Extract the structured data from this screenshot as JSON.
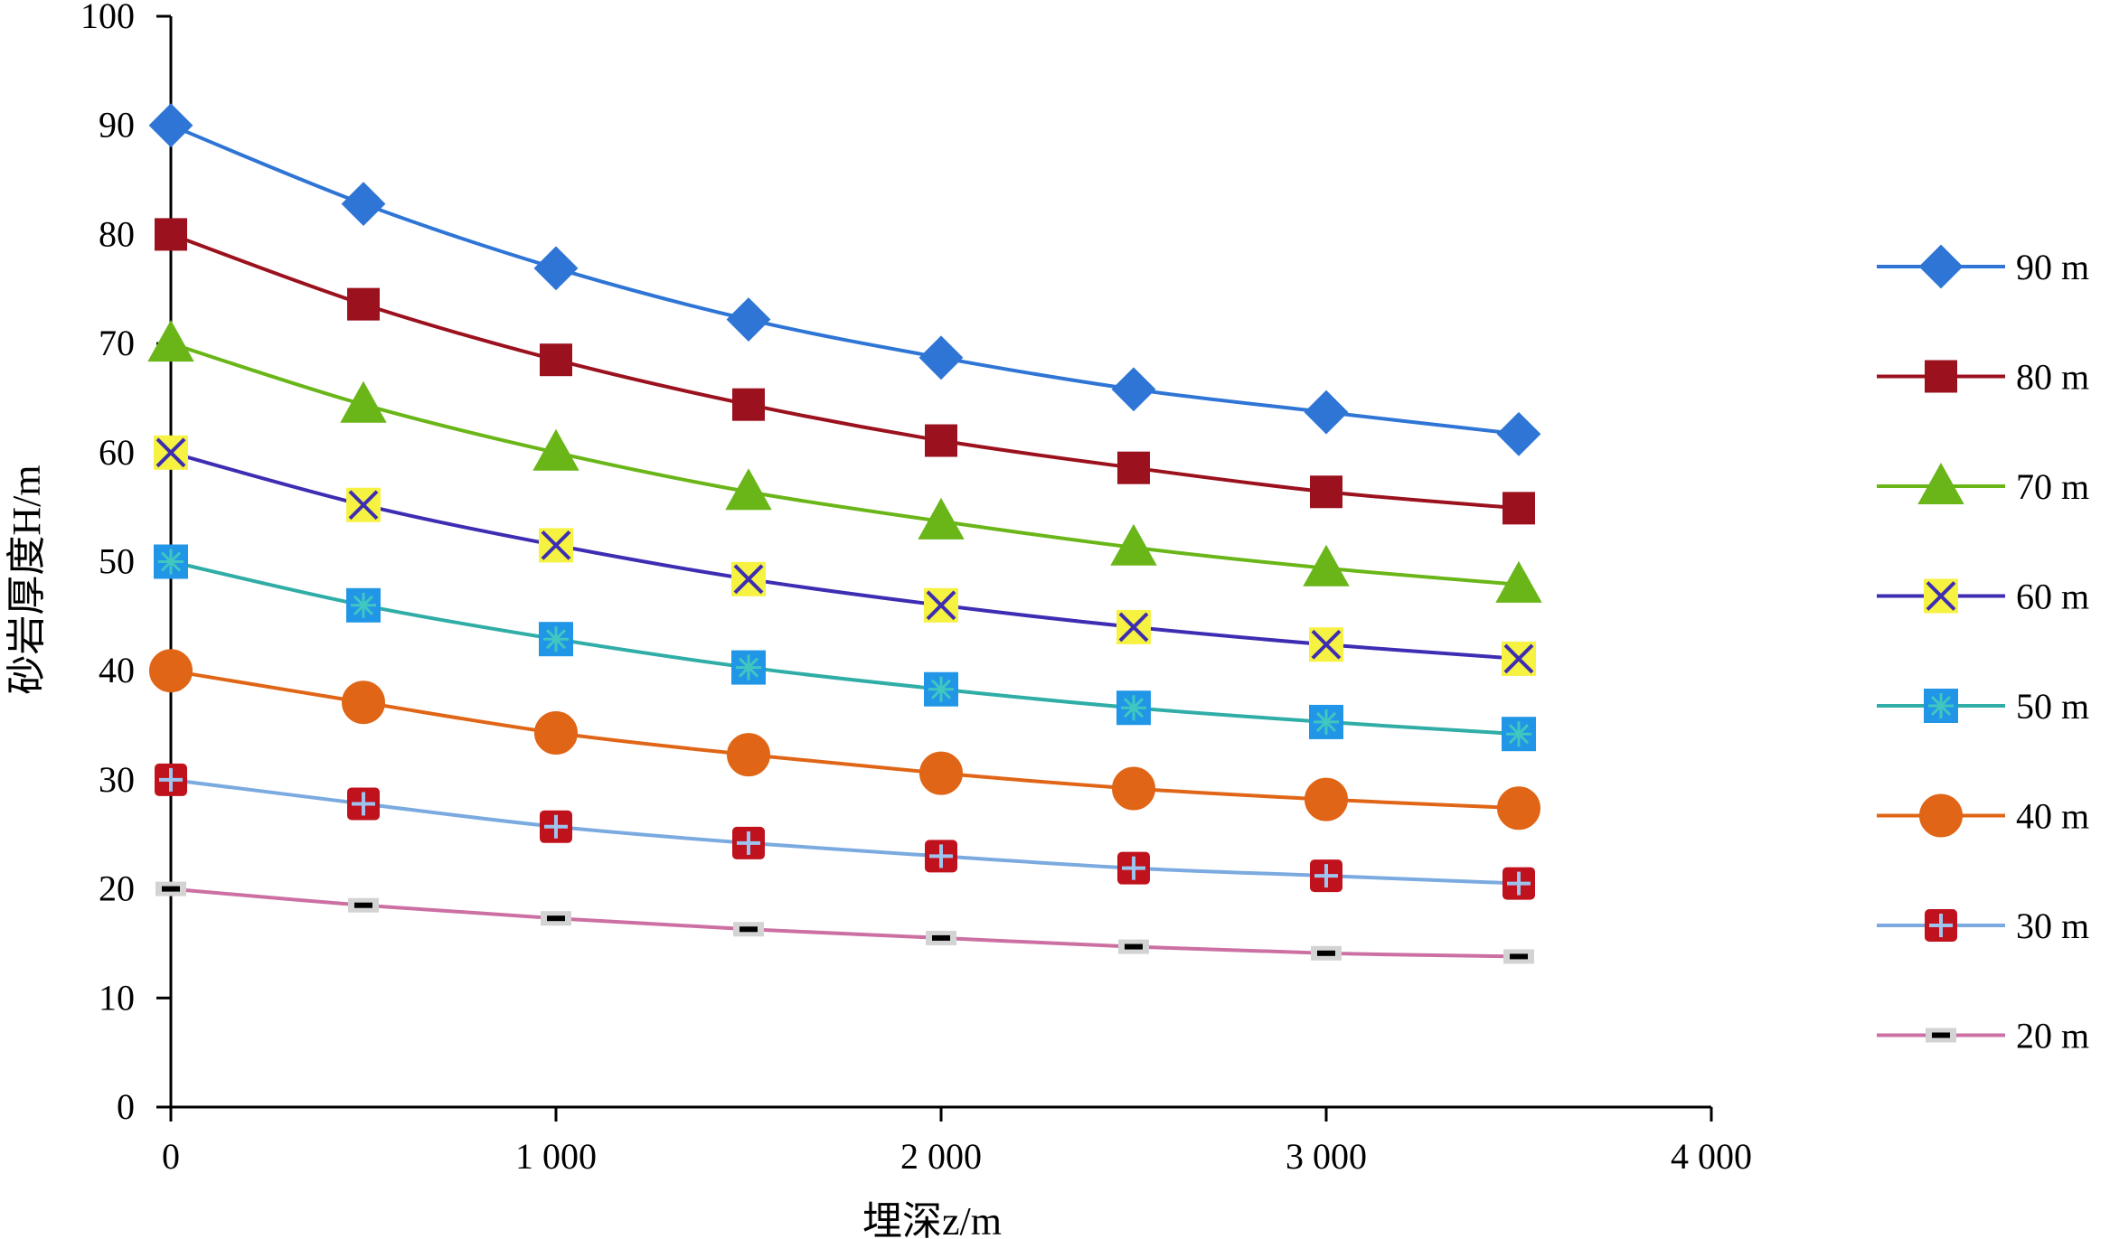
{
  "chart_data": {
    "type": "line",
    "title": "",
    "xlabel": "埋深z/m",
    "ylabel": "砂岩厚度H/m",
    "xlim": [
      0,
      4000
    ],
    "ylim": [
      0,
      100
    ],
    "x_ticks": [
      {
        "value": 0,
        "label": "0"
      },
      {
        "value": 1000,
        "label": "1 000"
      },
      {
        "value": 2000,
        "label": "2 000"
      },
      {
        "value": 3000,
        "label": "3 000"
      },
      {
        "value": 4000,
        "label": "4 000"
      }
    ],
    "y_ticks": [
      {
        "value": 0,
        "label": "0"
      },
      {
        "value": 10,
        "label": "10"
      },
      {
        "value": 20,
        "label": "20"
      },
      {
        "value": 30,
        "label": "30"
      },
      {
        "value": 40,
        "label": "40"
      },
      {
        "value": 50,
        "label": "50"
      },
      {
        "value": 60,
        "label": "60"
      },
      {
        "value": 70,
        "label": "70"
      },
      {
        "value": 80,
        "label": "80"
      },
      {
        "value": 90,
        "label": "90"
      },
      {
        "value": 100,
        "label": "100"
      }
    ],
    "grid": false,
    "legend_position": "right",
    "x": [
      0,
      500,
      1000,
      1500,
      2000,
      2500,
      3000,
      3500
    ],
    "series": [
      {
        "name": "90 m",
        "color": "#2e75d6",
        "marker": "diamond",
        "values": [
          90.0,
          82.8,
          76.9,
          72.2,
          68.7,
          65.8,
          63.7,
          61.7
        ]
      },
      {
        "name": "80 m",
        "color": "#9b111e",
        "marker": "square",
        "values": [
          80.0,
          73.6,
          68.5,
          64.4,
          61.1,
          58.6,
          56.4,
          54.9
        ]
      },
      {
        "name": "70 m",
        "color": "#6ab619",
        "marker": "triangle",
        "values": [
          70.0,
          64.4,
          60.0,
          56.4,
          53.7,
          51.3,
          49.4,
          47.9
        ]
      },
      {
        "name": "60 m",
        "color": "#3d2db3",
        "marker": "x",
        "values": [
          60.0,
          55.2,
          51.5,
          48.4,
          46.0,
          44.0,
          42.4,
          41.1
        ]
      },
      {
        "name": "50 m",
        "color": "#2fada6",
        "marker": "star",
        "values": [
          50.0,
          46.0,
          42.9,
          40.3,
          38.3,
          36.6,
          35.3,
          34.2
        ]
      },
      {
        "name": "40 m",
        "color": "#e06516",
        "marker": "circle",
        "values": [
          40.0,
          37.1,
          34.3,
          32.3,
          30.6,
          29.2,
          28.2,
          27.4
        ]
      },
      {
        "name": "30 m",
        "color": "#7aaadf",
        "marker": "plus",
        "values": [
          30.0,
          27.8,
          25.7,
          24.2,
          23.0,
          21.9,
          21.2,
          20.5
        ]
      },
      {
        "name": "20 m",
        "color": "#cc6fa3",
        "marker": "dash",
        "values": [
          20.0,
          18.5,
          17.3,
          16.3,
          15.5,
          14.7,
          14.1,
          13.8
        ]
      }
    ],
    "marker_styles": {
      "diamond": {
        "fill": "#2e75d6",
        "stroke": "#2e75d6"
      },
      "square": {
        "fill": "#9b111e",
        "stroke": "#9b111e"
      },
      "triangle": {
        "fill": "#6ab619",
        "stroke": "#6ab619"
      },
      "x": {
        "fill": "#f5f242",
        "stroke": "#3d2db3"
      },
      "star": {
        "fill": "#2196e6",
        "stroke": "#3fc7c0"
      },
      "circle": {
        "fill": "#e06516",
        "stroke": "#e06516"
      },
      "plus": {
        "fill": "#c0121d",
        "stroke": "#9cc4ef"
      },
      "dash": {
        "fill": "#d3d3d3",
        "stroke": "#000000"
      }
    }
  }
}
